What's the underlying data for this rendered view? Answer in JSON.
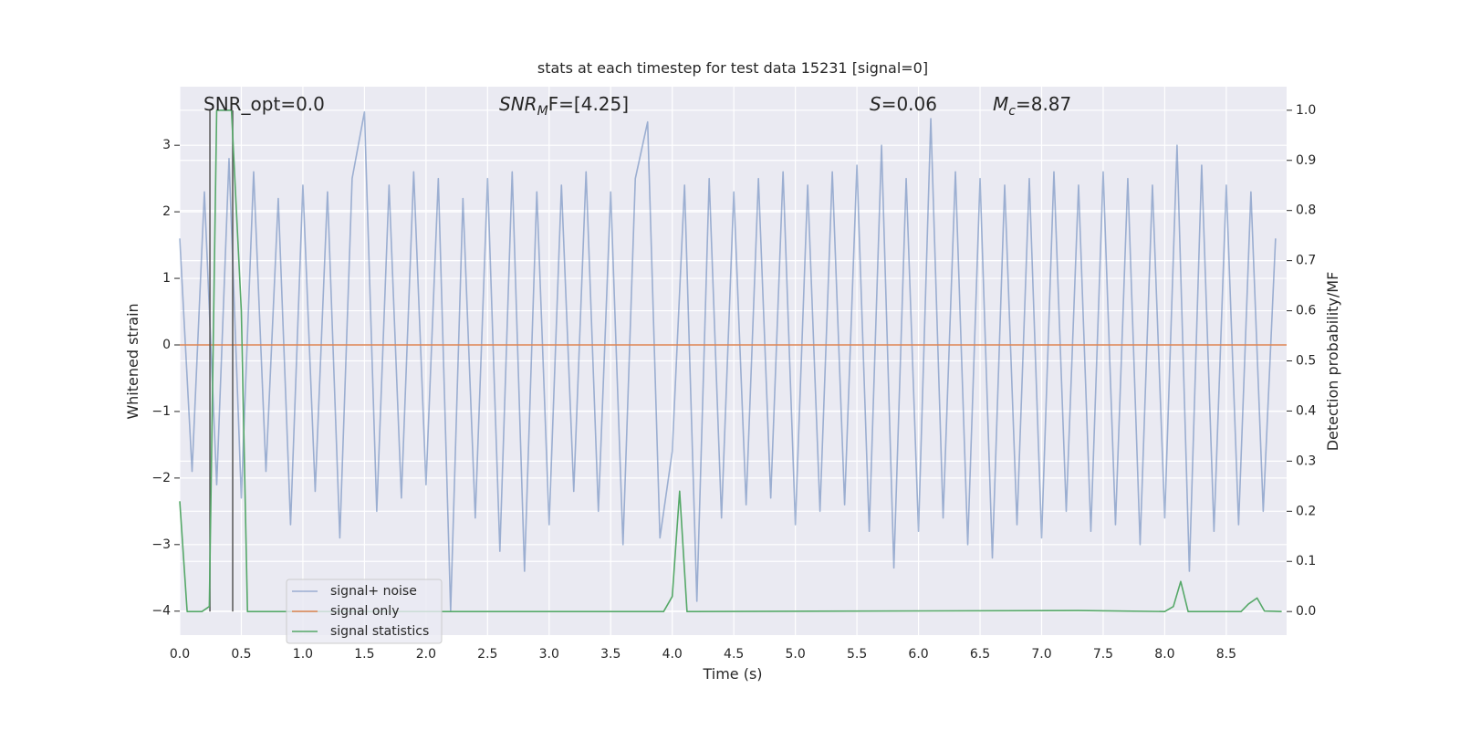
{
  "chart_data": {
    "type": "line",
    "title": "stats at each timestep for test data 15231 [signal=0]",
    "xlabel": "Time (s)",
    "ylabel": "Whitened strain",
    "y2label": "Detection probability/MF",
    "xlim": [
      0,
      8.99
    ],
    "ylim": [
      -4.36,
      3.88
    ],
    "y2lim": [
      -0.047,
      1.047
    ],
    "grid": true,
    "background": "#eaeaf2",
    "xticks": [
      {
        "value": 0,
        "label": "0.0"
      },
      {
        "value": 0.5,
        "label": "0.5"
      },
      {
        "value": 1,
        "label": "1.0"
      },
      {
        "value": 1.5,
        "label": "1.5"
      },
      {
        "value": 2,
        "label": "2.0"
      },
      {
        "value": 2.5,
        "label": "2.5"
      },
      {
        "value": 3,
        "label": "3.0"
      },
      {
        "value": 3.5,
        "label": "3.5"
      },
      {
        "value": 4,
        "label": "4.0"
      },
      {
        "value": 4.5,
        "label": "4.5"
      },
      {
        "value": 5,
        "label": "5.0"
      },
      {
        "value": 5.5,
        "label": "5.5"
      },
      {
        "value": 6,
        "label": "6.0"
      },
      {
        "value": 6.5,
        "label": "6.5"
      },
      {
        "value": 7,
        "label": "7.0"
      },
      {
        "value": 7.5,
        "label": "7.5"
      },
      {
        "value": 8,
        "label": "8.0"
      },
      {
        "value": 8.5,
        "label": "8.5"
      }
    ],
    "yticks": [
      {
        "value": -4,
        "label": "−4"
      },
      {
        "value": -3,
        "label": "−3"
      },
      {
        "value": -2,
        "label": "−2"
      },
      {
        "value": -1,
        "label": "−1"
      },
      0,
      1,
      2,
      3
    ],
    "y2ticks": [
      {
        "value": 0,
        "label": "0.0"
      },
      {
        "value": 0.1,
        "label": "0.1"
      },
      {
        "value": 0.2,
        "label": "0.2"
      },
      {
        "value": 0.3,
        "label": "0.3"
      },
      {
        "value": 0.4,
        "label": "0.4"
      },
      {
        "value": 0.5,
        "label": "0.5"
      },
      {
        "value": 0.6,
        "label": "0.6"
      },
      {
        "value": 0.7,
        "label": "0.7"
      },
      {
        "value": 0.8,
        "label": "0.8"
      },
      {
        "value": 0.9,
        "label": "0.9"
      },
      {
        "value": 1,
        "label": "1.0"
      }
    ],
    "legend": "lower left",
    "series": [
      {
        "name": "signal+ noise",
        "color": "#4c72b0",
        "opacity": 0.5,
        "x": [
          0,
          0.1,
          0.2,
          0.3,
          0.4,
          0.5,
          0.6,
          0.7,
          0.8,
          0.9,
          1,
          1.1,
          1.2,
          1.3,
          1.4,
          1.5,
          1.6,
          1.7,
          1.8,
          1.9,
          2,
          2.1,
          2.2,
          2.3,
          2.4,
          2.5,
          2.6,
          2.7,
          2.8,
          2.9,
          3,
          3.1,
          3.2,
          3.3,
          3.4,
          3.5,
          3.6,
          3.7,
          3.8,
          3.9,
          4,
          4.1,
          4.2,
          4.3,
          4.4,
          4.5,
          4.6,
          4.7,
          4.8,
          4.9,
          5,
          5.1,
          5.2,
          5.3,
          5.4,
          5.5,
          5.6,
          5.7,
          5.8,
          5.9,
          6,
          6.1,
          6.2,
          6.3,
          6.4,
          6.5,
          6.6,
          6.7,
          6.8,
          6.9,
          7,
          7.1,
          7.2,
          7.3,
          7.4,
          7.5,
          7.6,
          7.7,
          7.8,
          7.9,
          8,
          8.1,
          8.2,
          8.3,
          8.4,
          8.5,
          8.6,
          8.7,
          8.8,
          8.9
        ],
        "values": [
          1.6,
          -1.9,
          2.3,
          -2.1,
          2.8,
          -2.3,
          2.6,
          -1.9,
          2.2,
          -2.7,
          2.4,
          -2.2,
          2.3,
          -2.9,
          2.5,
          3.5,
          -2.5,
          2.4,
          -2.3,
          2.6,
          -2.1,
          2.5,
          -4.0,
          2.2,
          -2.6,
          2.5,
          -3.1,
          2.6,
          -3.4,
          2.3,
          -2.7,
          2.4,
          -2.2,
          2.6,
          -2.5,
          2.3,
          -3.0,
          2.5,
          3.35,
          -2.9,
          -1.6,
          2.4,
          -3.85,
          2.5,
          -2.6,
          2.3,
          -2.4,
          2.5,
          -2.3,
          2.6,
          -2.7,
          2.4,
          -2.5,
          2.6,
          -2.4,
          2.7,
          -2.8,
          3.0,
          -3.35,
          2.5,
          -2.8,
          3.4,
          -2.6,
          2.6,
          -3.0,
          2.5,
          -3.2,
          2.4,
          -2.7,
          2.5,
          -2.9,
          2.6,
          -2.5,
          2.4,
          -2.8,
          2.6,
          -2.7,
          2.5,
          -3.0,
          2.4,
          -2.6,
          3.0,
          -3.4,
          2.7,
          -2.8,
          2.4,
          -2.7,
          2.3,
          -2.5,
          1.6
        ]
      },
      {
        "name": "signal only",
        "color": "#dd8452",
        "opacity": 1,
        "x": [
          0,
          8.99
        ],
        "values": [
          0,
          0
        ]
      },
      {
        "name": "signal statistics",
        "color": "#55a868",
        "opacity": 1,
        "axis": "y2",
        "x": [
          0,
          0.06,
          0.18,
          0.24,
          0.3,
          0.42,
          0.5,
          0.55,
          3.93,
          4.0,
          4.06,
          4.12,
          7.3,
          8.0,
          8.07,
          8.13,
          8.19,
          8.62,
          8.68,
          8.75,
          8.81,
          8.95
        ],
        "values": [
          0.22,
          0,
          0,
          0.01,
          1.0,
          1.0,
          0.6,
          0,
          0,
          0.03,
          0.24,
          0,
          0.002,
          0,
          0.01,
          0.06,
          0,
          0,
          0.015,
          0.027,
          0.001,
          0
        ]
      }
    ],
    "vlines": {
      "x": [
        0.245,
        0.43
      ],
      "axis": "y2",
      "ymin": 0,
      "ymax": 1,
      "color": "#555555"
    },
    "annotations": [
      {
        "text": "SNR_opt=0.0"
      },
      {
        "main": "SNR",
        "sub": "M",
        "rest": "F=[4.25]"
      },
      {
        "main": "S",
        "rest": "=0.06"
      },
      {
        "main": "M",
        "sub": "c",
        "rest": "=8.87"
      }
    ]
  }
}
